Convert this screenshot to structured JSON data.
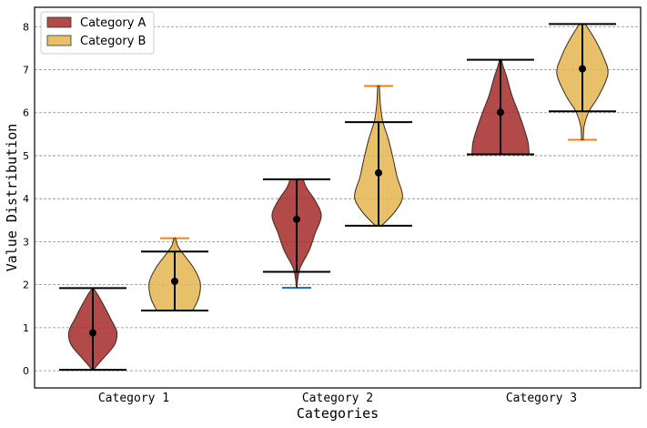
{
  "chart_data": {
    "type": "violin",
    "xlabel": "Categories",
    "ylabel": "Value Distribution",
    "categories": [
      "Category 1",
      "Category 2",
      "Category 3"
    ],
    "ylim": [
      -0.4,
      8.45
    ],
    "yticks": [
      0,
      1,
      2,
      3,
      4,
      5,
      6,
      7,
      8
    ],
    "grid": "horizontal dashed",
    "legend_position": "upper-left",
    "series": [
      {
        "name": "Category A",
        "color": "#a52a2a",
        "violins": [
          {
            "category": "Category 1",
            "mean": 0.88,
            "box_min": 0.02,
            "box_max": 1.92,
            "data_min": 0.02,
            "data_max": 1.92,
            "shape": [
              [
                0.02,
                0.02
              ],
              [
                0.25,
                0.3
              ],
              [
                0.6,
                0.72
              ],
              [
                0.9,
                0.8
              ],
              [
                1.2,
                0.6
              ],
              [
                1.5,
                0.38
              ],
              [
                1.75,
                0.18
              ],
              [
                1.92,
                0.02
              ]
            ]
          },
          {
            "category": "Category 2",
            "mean": 3.52,
            "box_min": 2.3,
            "box_max": 4.45,
            "data_min": 1.93,
            "data_max": 4.45,
            "shape": [
              [
                1.93,
                0.01
              ],
              [
                2.15,
                0.04
              ],
              [
                2.4,
                0.12
              ],
              [
                2.8,
                0.42
              ],
              [
                3.2,
                0.62
              ],
              [
                3.6,
                0.82
              ],
              [
                3.95,
                0.62
              ],
              [
                4.25,
                0.33
              ],
              [
                4.45,
                0.22
              ]
            ]
          },
          {
            "category": "Category 3",
            "mean": 6.01,
            "box_min": 5.03,
            "box_max": 7.23,
            "data_min": 5.03,
            "data_max": 7.23,
            "shape": [
              [
                5.03,
                0.95
              ],
              [
                5.3,
                0.92
              ],
              [
                5.6,
                0.8
              ],
              [
                6.0,
                0.6
              ],
              [
                6.4,
                0.38
              ],
              [
                6.8,
                0.22
              ],
              [
                7.05,
                0.1
              ],
              [
                7.23,
                0.03
              ]
            ]
          }
        ]
      },
      {
        "name": "Category B",
        "color": "#e5b550",
        "violins": [
          {
            "category": "Category 1",
            "mean": 2.08,
            "box_min": 1.4,
            "box_max": 2.77,
            "data_min": 1.4,
            "data_max": 3.08,
            "shape": [
              [
                1.4,
                0.6
              ],
              [
                1.7,
                0.8
              ],
              [
                2.05,
                0.85
              ],
              [
                2.4,
                0.62
              ],
              [
                2.7,
                0.3
              ],
              [
                2.9,
                0.1
              ],
              [
                3.08,
                0.03
              ]
            ]
          },
          {
            "category": "Category 2",
            "mean": 4.6,
            "box_min": 3.37,
            "box_max": 5.78,
            "data_min": 3.37,
            "data_max": 6.62,
            "shape": [
              [
                3.37,
                0.1
              ],
              [
                3.7,
                0.55
              ],
              [
                4.05,
                0.8
              ],
              [
                4.5,
                0.62
              ],
              [
                4.95,
                0.48
              ],
              [
                5.4,
                0.32
              ],
              [
                5.8,
                0.14
              ],
              [
                6.2,
                0.06
              ],
              [
                6.62,
                0.03
              ]
            ]
          },
          {
            "category": "Category 3",
            "mean": 7.02,
            "box_min": 6.03,
            "box_max": 8.06,
            "data_min": 5.37,
            "data_max": 8.06,
            "shape": [
              [
                5.37,
                0.03
              ],
              [
                5.7,
                0.06
              ],
              [
                6.03,
                0.22
              ],
              [
                6.4,
                0.55
              ],
              [
                6.9,
                0.85
              ],
              [
                7.3,
                0.7
              ],
              [
                7.7,
                0.42
              ],
              [
                8.06,
                0.1
              ]
            ]
          }
        ]
      }
    ]
  }
}
